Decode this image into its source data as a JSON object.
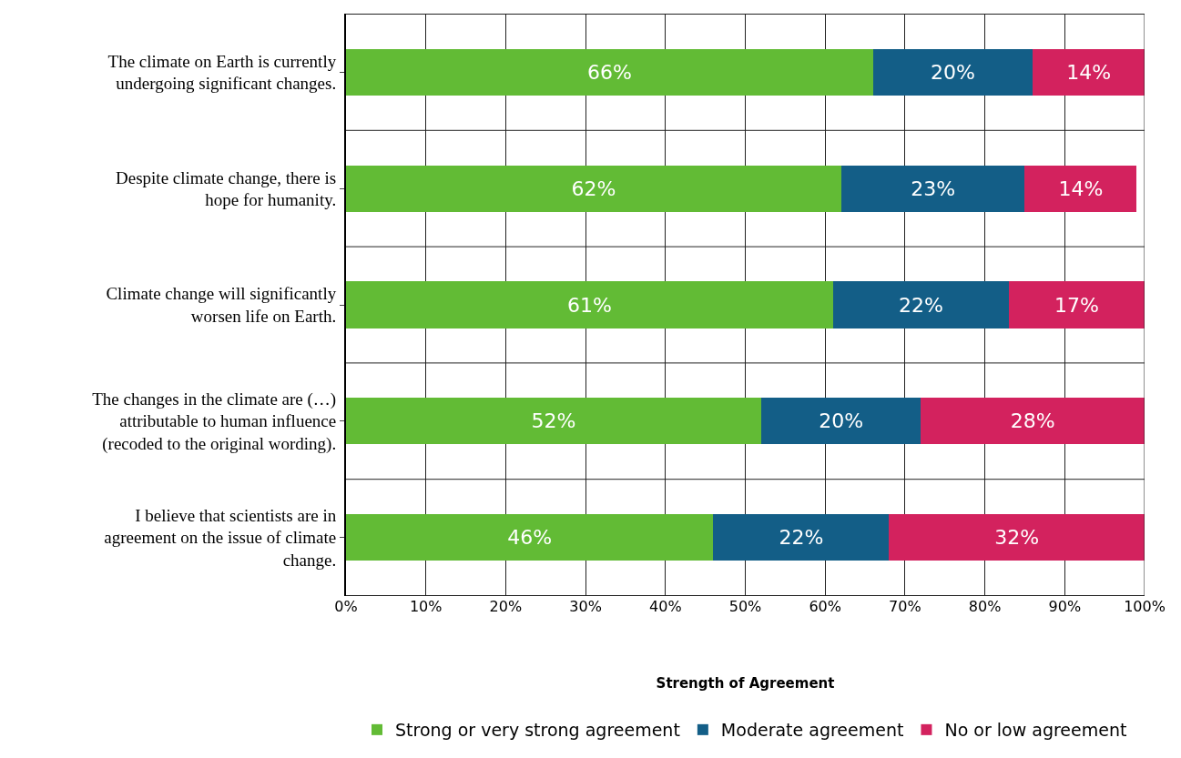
{
  "chart_data": {
    "type": "bar",
    "orientation": "horizontal",
    "stacked": true,
    "categories": [
      "The climate on Earth is currently undergoing significant changes.",
      "Despite climate change, there is hope for humanity.",
      "Climate change will significantly worsen life on Earth.",
      "The changes in the climate are (…) attributable to human influence (recoded to the original wording).",
      "I believe that scientists are in agreement on the issue of climate change."
    ],
    "series": [
      {
        "name": "Strong or very strong agreement",
        "color": "#62bb35",
        "values": [
          66,
          62,
          61,
          52,
          46
        ],
        "value_labels": [
          "66%",
          "62%",
          "61%",
          "52%",
          "46%"
        ]
      },
      {
        "name": "Moderate agreement",
        "color": "#135e87",
        "values": [
          20,
          23,
          22,
          20,
          22
        ],
        "value_labels": [
          "20%",
          "23%",
          "22%",
          "20%",
          "22%"
        ]
      },
      {
        "name": "No or low agreement",
        "color": "#d3225e",
        "values": [
          14,
          14,
          17,
          28,
          32
        ],
        "value_labels": [
          "14%",
          "14%",
          "17%",
          "28%",
          "32%"
        ]
      }
    ],
    "xlabel": "Strength of Agreement",
    "xlim": [
      0,
      100
    ],
    "xticks": [
      {
        "value": 0,
        "label": "0%"
      },
      {
        "value": 10,
        "label": "10%"
      },
      {
        "value": 20,
        "label": "20%"
      },
      {
        "value": 30,
        "label": "30%"
      },
      {
        "value": 40,
        "label": "40%"
      },
      {
        "value": 50,
        "label": "50%"
      },
      {
        "value": 60,
        "label": "60%"
      },
      {
        "value": 70,
        "label": "70%"
      },
      {
        "value": 80,
        "label": "80%"
      },
      {
        "value": 90,
        "label": "90%"
      },
      {
        "value": 100,
        "label": "100%"
      }
    ],
    "grid": "x",
    "legend": "bottom"
  }
}
